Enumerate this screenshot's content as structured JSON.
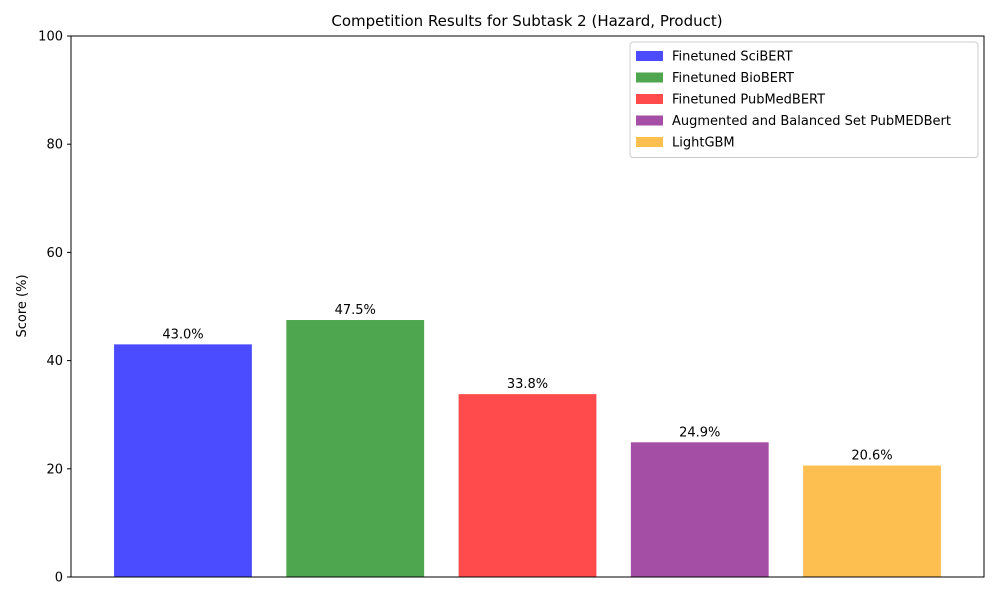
{
  "chart_data": {
    "type": "bar",
    "title": "Competition Results for Subtask 2 (Hazard, Product)",
    "xlabel": "",
    "ylabel": "Score (%)",
    "ylim": [
      0,
      100
    ],
    "yticks": [
      0,
      20,
      40,
      60,
      80,
      100
    ],
    "grid": false,
    "legend_position": "top-right",
    "series": [
      {
        "name": "Finetuned SciBERT",
        "value": 43.0,
        "label": "43.0%",
        "color": "#4b4bff"
      },
      {
        "name": "Finetuned BioBERT",
        "value": 47.5,
        "label": "47.5%",
        "color": "#4ea64e"
      },
      {
        "name": "Finetuned PubMedBERT",
        "value": 33.8,
        "label": "33.8%",
        "color": "#ff4b4b"
      },
      {
        "name": "Augmented and Balanced Set PubMEDBert",
        "value": 24.9,
        "label": "24.9%",
        "color": "#a44ea6"
      },
      {
        "name": "LightGBM",
        "value": 20.6,
        "label": "20.6%",
        "color": "#fdbf4f"
      }
    ]
  }
}
